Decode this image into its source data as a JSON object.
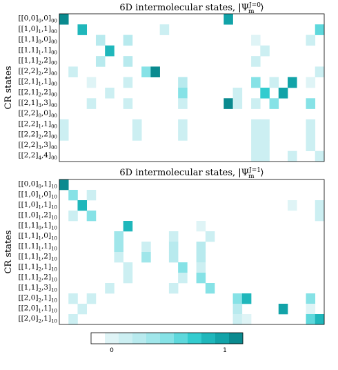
{
  "chart_data": [
    {
      "type": "heatmap",
      "title": "6D intermolecular states, |Ψ",
      "title_super": "J=0",
      "title_sub": "m",
      "title_close": "⟩",
      "ylabel": "CR states",
      "colormap": "white-to-teal, 11 levels",
      "range": [
        0,
        1
      ],
      "n_cols": 29,
      "rows": [
        {
          "b": "[[0,0]",
          "s1": "0",
          "m": ",0]",
          "s2": "00",
          "cells": [
            [
              0,
              0.95
            ],
            [
              18,
              0.85
            ]
          ]
        },
        {
          "b": "[[1,0]",
          "s1": "1",
          "m": ",1]",
          "s2": "00",
          "cells": [
            [
              2,
              0.75
            ],
            [
              11,
              0.2
            ],
            [
              28,
              0.6
            ]
          ]
        },
        {
          "b": "[[1,1]",
          "s1": "0",
          "m": ",0]",
          "s2": "00",
          "cells": [
            [
              4,
              0.3
            ],
            [
              7,
              0.3
            ],
            [
              21,
              0.1
            ],
            [
              27,
              0.2
            ]
          ]
        },
        {
          "b": "[[1,1]",
          "s1": "1",
          "m": ",1]",
          "s2": "00",
          "cells": [
            [
              5,
              0.8
            ],
            [
              22,
              0.15
            ]
          ]
        },
        {
          "b": "[[1,1]",
          "s1": "2",
          "m": ",2]",
          "s2": "00",
          "cells": [
            [
              4,
              0.3
            ],
            [
              7,
              0.3
            ],
            [
              21,
              0.2
            ]
          ]
        },
        {
          "b": "[[2,2]",
          "s1": "2",
          "m": ",2]",
          "s2": "00",
          "cells": [
            [
              1,
              0.2
            ],
            [
              9,
              0.45
            ],
            [
              10,
              0.95
            ],
            [
              28,
              0.15
            ]
          ]
        },
        {
          "b": "[[2,1]",
          "s1": "1",
          "m": ",1]",
          "s2": "00",
          "cells": [
            [
              3,
              0.1
            ],
            [
              7,
              0.15
            ],
            [
              13,
              0.25
            ],
            [
              21,
              0.45
            ],
            [
              23,
              0.15
            ],
            [
              25,
              0.9
            ],
            [
              27,
              0.1
            ]
          ]
        },
        {
          "b": "[[2,1]",
          "s1": "2",
          "m": ",2]",
          "s2": "00",
          "cells": [
            [
              5,
              0.2
            ],
            [
              13,
              0.45
            ],
            [
              19,
              0.15
            ],
            [
              22,
              0.65
            ],
            [
              24,
              0.9
            ]
          ]
        },
        {
          "b": "[[2,1]",
          "s1": "3",
          "m": ",3]",
          "s2": "00",
          "cells": [
            [
              3,
              0.15
            ],
            [
              7,
              0.2
            ],
            [
              13,
              0.2
            ],
            [
              18,
              0.95
            ],
            [
              19,
              0.15
            ],
            [
              21,
              0.15
            ],
            [
              23,
              0.5
            ],
            [
              27,
              0.45
            ]
          ]
        },
        {
          "b": "[[2,2]",
          "s1": "0",
          "m": ",0]",
          "s2": "00",
          "cells": []
        },
        {
          "b": "[[2,2]",
          "s1": "1",
          "m": ",1]",
          "s2": "00",
          "cells": [
            [
              0,
              0.15
            ],
            [
              8,
              0.15
            ],
            [
              13,
              0.15
            ],
            [
              21,
              0.15
            ],
            [
              22,
              0.15
            ],
            [
              27,
              0.15
            ]
          ]
        },
        {
          "b": "[[2,2]",
          "s1": "2",
          "m": ",2]",
          "s2": "00",
          "cells": [
            [
              0,
              0.15
            ],
            [
              8,
              0.15
            ],
            [
              13,
              0.15
            ],
            [
              21,
              0.15
            ],
            [
              22,
              0.15
            ],
            [
              27,
              0.15
            ]
          ]
        },
        {
          "b": "[[2,2]",
          "s1": "3",
          "m": ",3]",
          "s2": "00",
          "cells": [
            [
              21,
              0.15
            ],
            [
              22,
              0.15
            ],
            [
              27,
              0.15
            ]
          ]
        },
        {
          "b": "[[2,2]",
          "s1": "4",
          "m": ",4]",
          "s2": "00",
          "cells": [
            [
              21,
              0.15
            ],
            [
              22,
              0.15
            ],
            [
              25,
              0.15
            ],
            [
              28,
              0.15
            ]
          ]
        }
      ]
    },
    {
      "type": "heatmap",
      "title": "6D intermolecular states, |Ψ",
      "title_super": "J=1",
      "title_sub": "m",
      "title_close": "⟩",
      "ylabel": "CR states",
      "colormap": "white-to-teal, 11 levels",
      "range": [
        0,
        1
      ],
      "n_cols": 29,
      "rows": [
        {
          "b": "[[0,0]",
          "s1": "0",
          "m": ",1]",
          "s2": "10",
          "cells": [
            [
              0,
              0.95
            ]
          ]
        },
        {
          "b": "[[1,0]",
          "s1": "1",
          "m": ",0]",
          "s2": "10",
          "cells": [
            [
              1,
              0.45
            ],
            [
              3,
              0.2
            ]
          ]
        },
        {
          "b": "[[1,0]",
          "s1": "1",
          "m": ",1]",
          "s2": "10",
          "cells": [
            [
              2,
              0.75
            ],
            [
              25,
              0.1
            ],
            [
              28,
              0.15
            ]
          ]
        },
        {
          "b": "[[1,0]",
          "s1": "1",
          "m": ",2]",
          "s2": "10",
          "cells": [
            [
              1,
              0.2
            ],
            [
              3,
              0.45
            ],
            [
              28,
              0.15
            ]
          ]
        },
        {
          "b": "[[1,1]",
          "s1": "0",
          "m": ",1]",
          "s2": "10",
          "cells": [
            [
              7,
              0.8
            ],
            [
              15,
              0.1
            ]
          ]
        },
        {
          "b": "[[1,1]",
          "s1": "1",
          "m": ",0]",
          "s2": "10",
          "cells": [
            [
              6,
              0.35
            ],
            [
              12,
              0.15
            ],
            [
              16,
              0.2
            ]
          ]
        },
        {
          "b": "[[1,1]",
          "s1": "1",
          "m": ",1]",
          "s2": "10",
          "cells": [
            [
              6,
              0.35
            ],
            [
              9,
              0.15
            ],
            [
              12,
              0.25
            ],
            [
              15,
              0.25
            ]
          ]
        },
        {
          "b": "[[1,1]",
          "s1": "1",
          "m": ",2]",
          "s2": "10",
          "cells": [
            [
              6,
              0.15
            ],
            [
              9,
              0.35
            ],
            [
              12,
              0.25
            ],
            [
              15,
              0.25
            ]
          ]
        },
        {
          "b": "[[1,1]",
          "s1": "2",
          "m": ",1]",
          "s2": "10",
          "cells": [
            [
              7,
              0.15
            ],
            [
              13,
              0.45
            ],
            [
              15,
              0.15
            ]
          ]
        },
        {
          "b": "[[1,1]",
          "s1": "2",
          "m": ",2]",
          "s2": "10",
          "cells": [
            [
              7,
              0.15
            ],
            [
              13,
              0.2
            ],
            [
              15,
              0.45
            ]
          ]
        },
        {
          "b": "[[1,1]",
          "s1": "2",
          "m": ",3]",
          "s2": "10",
          "cells": [
            [
              5,
              0.15
            ],
            [
              12,
              0.15
            ],
            [
              16,
              0.45
            ]
          ]
        },
        {
          "b": "[[2,0]",
          "s1": "2",
          "m": ",1]",
          "s2": "10",
          "cells": [
            [
              1,
              0.15
            ],
            [
              3,
              0.15
            ],
            [
              19,
              0.45
            ],
            [
              20,
              0.75
            ],
            [
              27,
              0.45
            ]
          ]
        },
        {
          "b": "[[2,0]",
          "s1": "1",
          "m": ",1]",
          "s2": "10",
          "cells": [
            [
              2,
              0.15
            ],
            [
              19,
              0.3
            ],
            [
              24,
              0.9
            ],
            [
              27,
              0.1
            ]
          ]
        },
        {
          "b": "[[2,0]",
          "s1": "2",
          "m": ",1]",
          "s2": "10",
          "cells": [
            [
              1,
              0.2
            ],
            [
              19,
              0.2
            ],
            [
              20,
              0.1
            ],
            [
              27,
              0.6
            ],
            [
              28,
              0.75
            ]
          ]
        }
      ]
    }
  ],
  "colorbar": {
    "min_label": "0",
    "max_label": "1",
    "colors": [
      "#ffffff",
      "#dff4f6",
      "#cceff2",
      "#b8eaee",
      "#a0e6ea",
      "#86e2e6",
      "#5ed8dc",
      "#33cccf",
      "#1fb7bb",
      "#12a3a8",
      "#0a8a8f"
    ]
  }
}
